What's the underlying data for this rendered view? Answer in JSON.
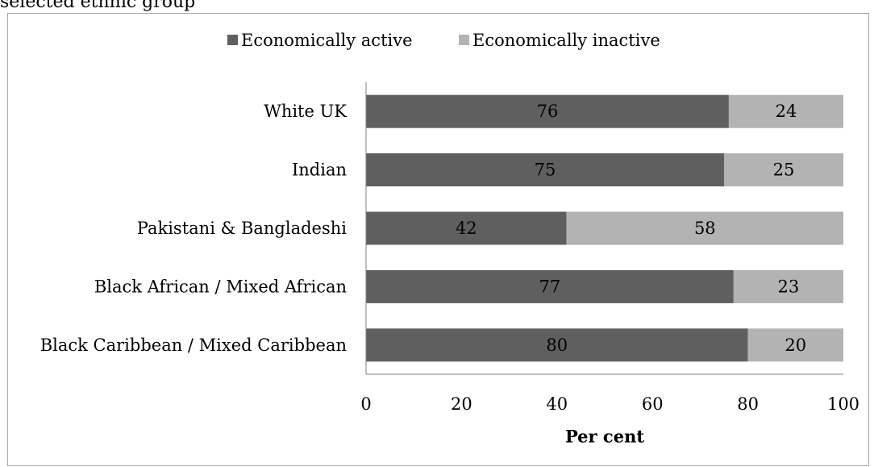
{
  "caption": "selected ethnic group",
  "colors": {
    "active": "#5f5f5f",
    "inactive": "#b3b3b3",
    "axis": "#808080",
    "frame": "#a6a6a6"
  },
  "chart_data": {
    "type": "bar",
    "orientation": "horizontal",
    "stacked": true,
    "categories": [
      "White UK",
      "Indian",
      "Pakistani & Bangladeshi",
      "Black African / Mixed African",
      "Black Caribbean / Mixed Caribbean"
    ],
    "series": [
      {
        "name": "Economically active",
        "values": [
          76,
          75,
          42,
          77,
          80
        ]
      },
      {
        "name": "Economically inactive",
        "values": [
          24,
          25,
          58,
          23,
          20
        ]
      }
    ],
    "xlabel": "Per cent",
    "ylabel": "",
    "xlim": [
      0,
      100
    ],
    "xticks": [
      0,
      20,
      40,
      60,
      80,
      100
    ],
    "grid": false,
    "legend_position": "top",
    "data_labels": true
  }
}
